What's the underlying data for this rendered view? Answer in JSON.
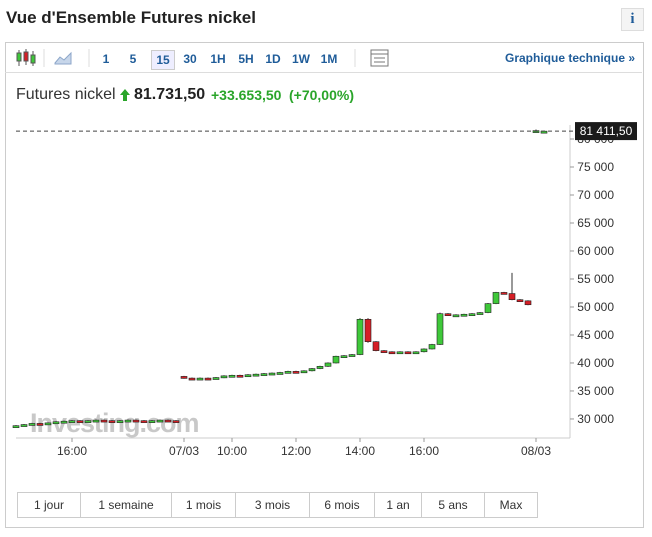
{
  "header": {
    "title": "Vue d'Ensemble Futures nickel",
    "info": "i"
  },
  "toolbar": {
    "intervals": [
      "1",
      "5",
      "15",
      "30",
      "1H",
      "5H",
      "1D",
      "1W",
      "1M"
    ],
    "technical": "Graphique technique »"
  },
  "quote": {
    "name": "Futures nickel",
    "price": "81.731,50",
    "change": "+33.653,50",
    "change_pct": "(+70,00%)"
  },
  "watermark": "Investing.com",
  "ranges": [
    "1 jour",
    "1 semaine",
    "1 mois",
    "3 mois",
    "6 mois",
    "1 an",
    "5 ans",
    "Max"
  ],
  "chart_data": {
    "type": "candlestick",
    "up_color": "#3fc83a",
    "down_color": "#d61f26",
    "categories": [
      null,
      null,
      null,
      null,
      null,
      null,
      null,
      "16:00",
      null,
      null,
      null,
      null,
      null,
      null,
      null,
      null,
      null,
      null,
      null,
      null,
      null,
      "07/03",
      null,
      null,
      null,
      null,
      null,
      "10:00",
      null,
      null,
      null,
      null,
      null,
      null,
      null,
      "12:00",
      null,
      null,
      null,
      null,
      null,
      null,
      null,
      "14:00",
      null,
      null,
      null,
      null,
      null,
      null,
      null,
      "16:00",
      null,
      null,
      null,
      null,
      null,
      null,
      null,
      null,
      null,
      null,
      null,
      null,
      null,
      "08/03",
      null
    ],
    "open": [
      28700,
      28800,
      29000,
      29200,
      29100,
      29300,
      29500,
      29600,
      29700,
      29600,
      29700,
      29800,
      29700,
      29600,
      29700,
      29800,
      29700,
      29600,
      29700,
      29800,
      29700,
      37600,
      37300,
      37200,
      37300,
      37200,
      37400,
      37700,
      37800,
      37700,
      37900,
      38000,
      38100,
      38200,
      38300,
      38500,
      38400,
      38600,
      39000,
      39400,
      40000,
      41200,
      41300,
      41500,
      47800,
      43800,
      42200,
      42000,
      41900,
      42000,
      41800,
      42000,
      42500,
      43300,
      48800,
      48500,
      48600,
      48700,
      48800,
      49000,
      50600,
      52600,
      52400,
      51300,
      51100,
      81300,
      81400
    ],
    "close": [
      28800,
      29000,
      29200,
      29100,
      29300,
      29500,
      29600,
      29700,
      29600,
      29700,
      29800,
      29700,
      29600,
      29700,
      29800,
      29700,
      29600,
      29700,
      29800,
      29700,
      29600,
      37300,
      37200,
      37300,
      37200,
      37400,
      37700,
      37800,
      37700,
      37900,
      38000,
      38100,
      38200,
      38300,
      38500,
      38400,
      38600,
      39000,
      39400,
      40000,
      41200,
      41300,
      41500,
      47800,
      43800,
      42200,
      42000,
      41900,
      42000,
      41800,
      42000,
      42500,
      43300,
      48800,
      48500,
      48600,
      48700,
      48800,
      49000,
      50600,
      52600,
      52400,
      51300,
      51100,
      50400,
      81500,
      81400
    ],
    "high": [
      28900,
      29100,
      29300,
      29300,
      29400,
      29600,
      29700,
      29800,
      29800,
      29800,
      29900,
      29900,
      29800,
      29800,
      29900,
      29900,
      29800,
      29800,
      29900,
      29900,
      29800,
      37700,
      37400,
      37400,
      37400,
      37500,
      37800,
      37900,
      37900,
      38000,
      38100,
      38200,
      38300,
      38400,
      38600,
      38600,
      38700,
      39100,
      39500,
      40100,
      41300,
      41400,
      41600,
      48000,
      48000,
      43900,
      42300,
      42100,
      42100,
      42100,
      42100,
      42600,
      43400,
      49000,
      48900,
      48700,
      48800,
      48900,
      49100,
      50700,
      52700,
      52700,
      56100,
      51400,
      51200,
      81700,
      81500
    ],
    "low": [
      28600,
      28700,
      28900,
      29000,
      29000,
      29200,
      29400,
      29500,
      29500,
      29500,
      29600,
      29600,
      29500,
      29500,
      29600,
      29600,
      29500,
      29500,
      29600,
      29600,
      29500,
      37200,
      37100,
      37100,
      37100,
      37100,
      37300,
      37600,
      37600,
      37600,
      37800,
      37900,
      38000,
      38100,
      38200,
      38300,
      38300,
      38500,
      38900,
      39300,
      39900,
      41100,
      41200,
      41400,
      43600,
      42100,
      41900,
      41800,
      41800,
      41700,
      41700,
      41900,
      42400,
      43200,
      48400,
      48400,
      48500,
      48600,
      48700,
      48900,
      50500,
      52300,
      51200,
      51000,
      50300,
      81200,
      81300
    ],
    "ylim": [
      26600,
      82500
    ],
    "yticks": [
      {
        "value": 30000,
        "label": "30 000"
      },
      {
        "value": 35000,
        "label": "35 000"
      },
      {
        "value": 40000,
        "label": "40 000"
      },
      {
        "value": 45000,
        "label": "45 000"
      },
      {
        "value": 50000,
        "label": "50 000"
      },
      {
        "value": 55000,
        "label": "55 000"
      },
      {
        "value": 60000,
        "label": "60 000"
      },
      {
        "value": 65000,
        "label": "65 000"
      },
      {
        "value": 70000,
        "label": "70 000"
      },
      {
        "value": 75000,
        "label": "75 000"
      },
      {
        "value": 80000,
        "label": "80 000"
      }
    ],
    "last_price": {
      "value": 81411.5,
      "label": "81 411,50"
    }
  }
}
